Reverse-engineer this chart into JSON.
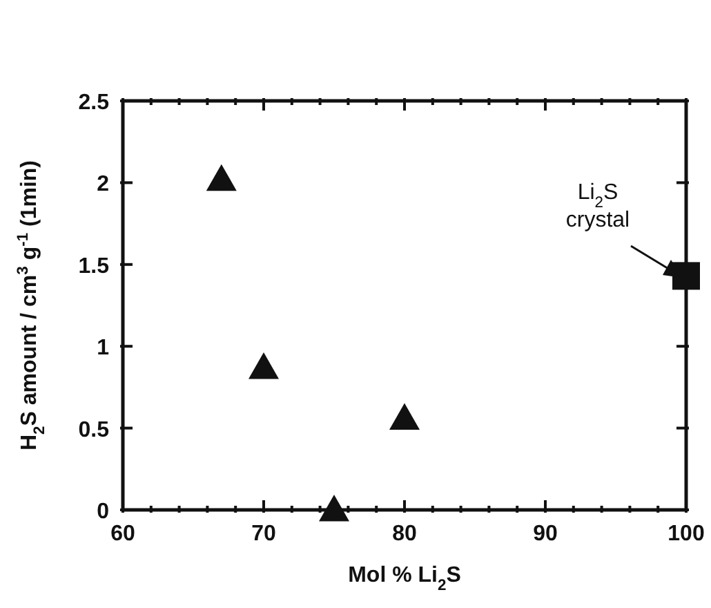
{
  "chart_data": {
    "type": "scatter",
    "xlabel": "Mol % Li$_{2}$S",
    "ylabel": "H$_{2}$S amount / cm$^{3}$ g$^{-1}$ (1min)",
    "xlim": [
      60,
      100
    ],
    "xticks": [
      60,
      {
        "value": 62,
        "label": null
      },
      {
        "value": 64,
        "label": null
      },
      {
        "value": 66,
        "label": null
      },
      {
        "value": 68,
        "label": null
      },
      70,
      {
        "value": 72,
        "label": null
      },
      {
        "value": 74,
        "label": null
      },
      {
        "value": 76,
        "label": null
      },
      {
        "value": 78,
        "label": null
      },
      80,
      {
        "value": 82,
        "label": null
      },
      {
        "value": 84,
        "label": null
      },
      {
        "value": 86,
        "label": null
      },
      {
        "value": 88,
        "label": null
      },
      90,
      {
        "value": 92,
        "label": null
      },
      {
        "value": 94,
        "label": null
      },
      {
        "value": 96,
        "label": null
      },
      {
        "value": 98,
        "label": null
      },
      100
    ],
    "ylim": [
      0,
      2.5
    ],
    "yticks": [
      0,
      0.5,
      1,
      1.5,
      2,
      2.5
    ],
    "grid": false,
    "legend": false,
    "series": [
      {
        "marker": "triangle",
        "color": "#111111",
        "x": [
          67,
          70,
          75,
          80
        ],
        "values": [
          2.02,
          0.87,
          0,
          0.56
        ]
      },
      {
        "marker": "square",
        "color": "#111111",
        "x": [
          100
        ],
        "values": [
          1.43
        ]
      }
    ],
    "annotations": [
      "Li$_{2}$S crystal"
    ]
  }
}
